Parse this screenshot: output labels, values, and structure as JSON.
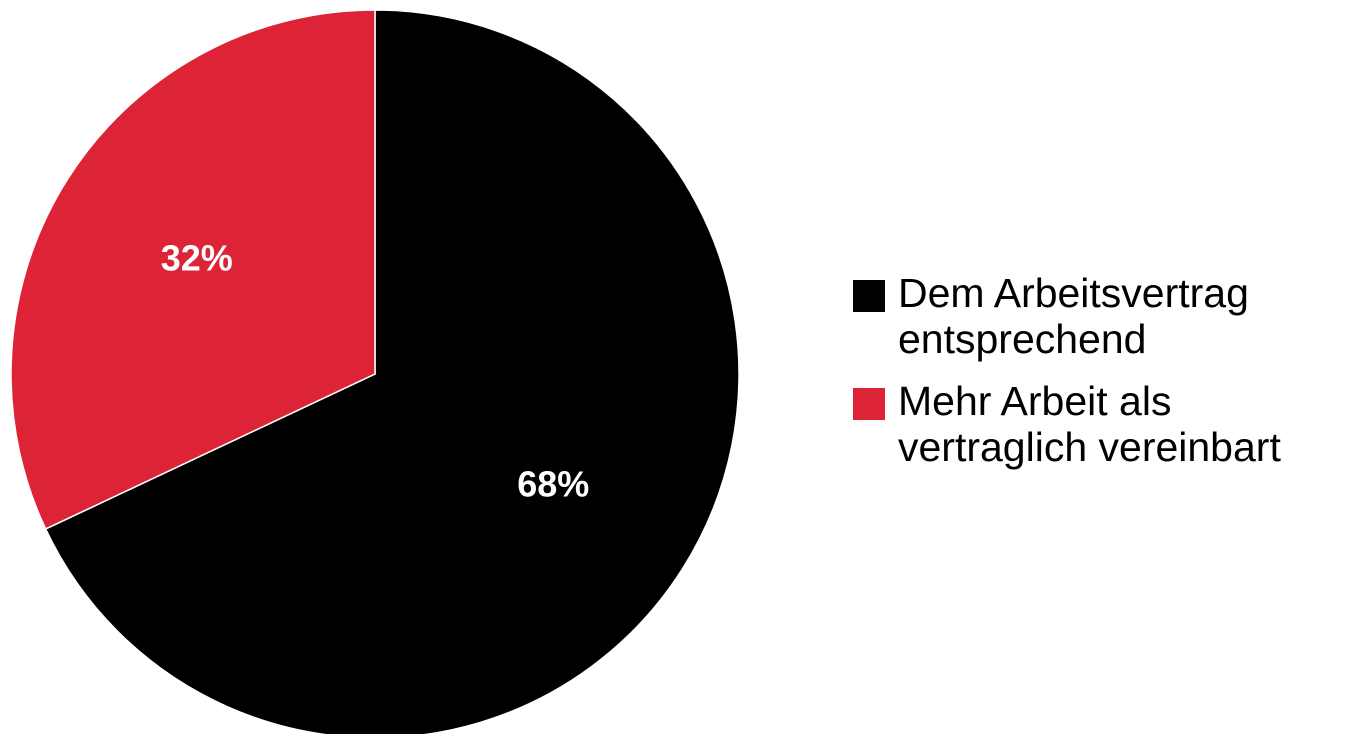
{
  "chart_data": {
    "type": "pie",
    "title": "",
    "slices": [
      {
        "label": "Dem Arbeitsvertrag\nentsprechend",
        "value": 68,
        "display": "68%",
        "color": "#000000"
      },
      {
        "label": "Mehr Arbeit als\nvertraglich vereinbart",
        "value": 32,
        "display": "32%",
        "color": "#dd2436"
      }
    ],
    "start": "top, clockwise",
    "label_color": "#ffffff",
    "legend_placement": "right"
  },
  "legend": {
    "items": [
      {
        "line1": "Dem Arbeitsvertrag",
        "line2": "entsprechend",
        "color": "#000000"
      },
      {
        "line1": "Mehr Arbeit als",
        "line2": "vertraglich vereinbart",
        "color": "#dd2436"
      }
    ]
  }
}
